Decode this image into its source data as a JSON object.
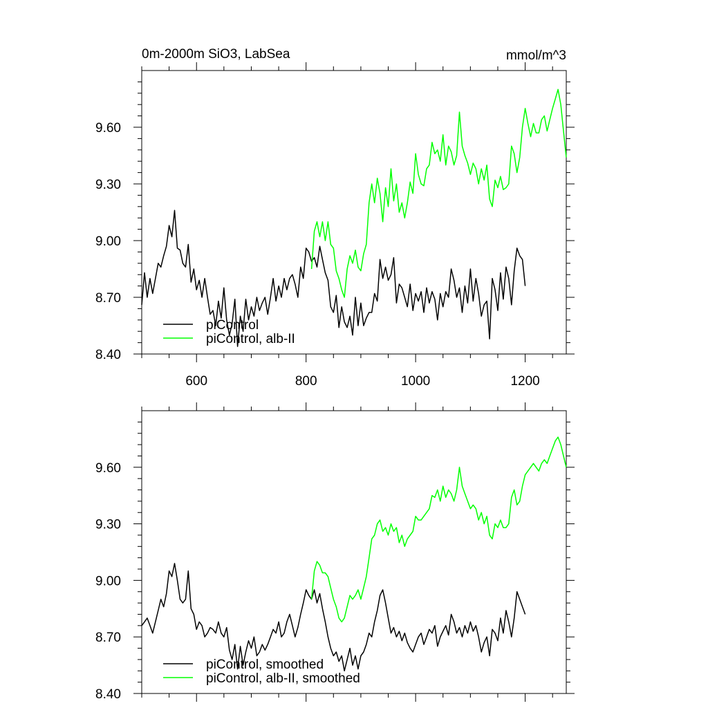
{
  "colors": {
    "series_black": "#000000",
    "series_green": "#00ff00",
    "axis": "#000000",
    "background": "#ffffff"
  },
  "chart_data": [
    {
      "type": "line",
      "title": "0m-2000m SiO3, LabSea",
      "units": "mmol/m^3",
      "xlim": [
        500,
        1275
      ],
      "ylim": [
        8.4,
        9.9
      ],
      "xticks": [
        600,
        800,
        1000,
        1200
      ],
      "xtick_labels": [
        "600",
        "800",
        "1000",
        "1200"
      ],
      "yticks": [
        8.4,
        8.7,
        9.0,
        9.3,
        9.6
      ],
      "ytick_labels": [
        "8.40",
        "8.70",
        "9.00",
        "9.30",
        "9.60"
      ],
      "grid": false,
      "legend": "bottom-left",
      "series": [
        {
          "name": "piControl",
          "color": "#000000",
          "x": [
            500,
            505,
            510,
            515,
            520,
            525,
            530,
            535,
            540,
            545,
            550,
            555,
            560,
            565,
            570,
            575,
            580,
            585,
            590,
            595,
            600,
            605,
            610,
            615,
            620,
            625,
            630,
            635,
            640,
            645,
            650,
            655,
            660,
            665,
            670,
            675,
            680,
            685,
            690,
            695,
            700,
            705,
            710,
            715,
            720,
            725,
            730,
            735,
            740,
            745,
            750,
            755,
            760,
            765,
            770,
            775,
            780,
            785,
            790,
            795,
            800,
            805,
            810,
            815,
            820,
            825,
            830,
            835,
            840,
            845,
            850,
            855,
            860,
            865,
            870,
            875,
            880,
            885,
            890,
            895,
            900,
            905,
            910,
            915,
            920,
            925,
            930,
            935,
            940,
            945,
            950,
            955,
            960,
            965,
            970,
            975,
            980,
            985,
            990,
            995,
            1000,
            1005,
            1010,
            1015,
            1020,
            1025,
            1030,
            1035,
            1040,
            1045,
            1050,
            1055,
            1060,
            1065,
            1070,
            1075,
            1080,
            1085,
            1090,
            1095,
            1100,
            1105,
            1110,
            1115,
            1120,
            1125,
            1130,
            1135,
            1140,
            1145,
            1150,
            1155,
            1160,
            1165,
            1170,
            1175,
            1180,
            1185,
            1190,
            1195,
            1200
          ],
          "y": [
            8.66,
            8.83,
            8.7,
            8.8,
            8.72,
            8.8,
            8.88,
            8.86,
            8.92,
            8.97,
            9.08,
            9.02,
            9.16,
            8.96,
            8.95,
            8.88,
            8.86,
            8.98,
            8.78,
            8.85,
            8.74,
            8.79,
            8.7,
            8.8,
            8.7,
            8.61,
            8.63,
            8.55,
            8.68,
            8.59,
            8.75,
            8.58,
            8.5,
            8.56,
            8.69,
            8.44,
            8.6,
            8.52,
            8.69,
            8.58,
            8.65,
            8.6,
            8.7,
            8.63,
            8.67,
            8.7,
            8.61,
            8.7,
            8.8,
            8.68,
            8.76,
            8.7,
            8.8,
            8.74,
            8.8,
            8.82,
            8.77,
            8.7,
            8.86,
            8.8,
            8.96,
            8.94,
            8.89,
            8.91,
            8.86,
            8.97,
            8.9,
            8.83,
            8.79,
            8.65,
            8.62,
            8.71,
            8.54,
            8.65,
            8.57,
            8.54,
            8.6,
            8.5,
            8.7,
            8.55,
            8.67,
            8.55,
            8.59,
            8.62,
            8.62,
            8.72,
            8.68,
            8.9,
            8.8,
            8.86,
            8.79,
            8.82,
            8.91,
            8.67,
            8.77,
            8.75,
            8.7,
            8.65,
            8.77,
            8.63,
            8.72,
            8.68,
            8.73,
            8.62,
            8.75,
            8.67,
            8.73,
            8.69,
            8.58,
            8.72,
            8.65,
            8.73,
            8.7,
            8.85,
            8.79,
            8.7,
            8.75,
            8.62,
            8.76,
            8.67,
            8.85,
            8.68,
            8.8,
            8.72,
            8.6,
            8.66,
            8.68,
            8.48,
            8.8,
            8.74,
            8.63,
            8.83,
            8.69,
            8.86,
            8.8,
            8.66,
            8.84,
            8.96,
            8.92,
            8.9,
            8.76
          ]
        },
        {
          "name": "piControl, alb-II",
          "color": "#00ff00",
          "x": [
            810,
            815,
            820,
            825,
            830,
            835,
            840,
            845,
            850,
            855,
            860,
            865,
            870,
            875,
            880,
            885,
            890,
            895,
            900,
            905,
            910,
            915,
            920,
            925,
            930,
            935,
            940,
            945,
            950,
            955,
            960,
            965,
            970,
            975,
            980,
            985,
            990,
            995,
            1000,
            1005,
            1010,
            1015,
            1020,
            1025,
            1030,
            1035,
            1040,
            1045,
            1050,
            1055,
            1060,
            1065,
            1070,
            1075,
            1080,
            1085,
            1090,
            1095,
            1100,
            1105,
            1110,
            1115,
            1120,
            1125,
            1130,
            1135,
            1140,
            1145,
            1150,
            1155,
            1160,
            1165,
            1170,
            1175,
            1180,
            1185,
            1190,
            1195,
            1200,
            1205,
            1210,
            1215,
            1220,
            1225,
            1230,
            1235,
            1240,
            1245,
            1250,
            1255,
            1260,
            1265,
            1270,
            1275
          ],
          "y": [
            8.85,
            9.05,
            9.1,
            9.02,
            9.1,
            9.0,
            9.1,
            8.98,
            8.96,
            8.84,
            8.8,
            8.74,
            8.7,
            8.85,
            8.92,
            8.88,
            8.95,
            8.86,
            8.84,
            8.93,
            8.98,
            9.2,
            9.3,
            9.2,
            9.33,
            9.25,
            9.1,
            9.28,
            9.18,
            9.38,
            9.21,
            9.3,
            9.15,
            9.2,
            9.12,
            9.2,
            9.31,
            9.25,
            9.46,
            9.35,
            9.3,
            9.29,
            9.38,
            9.4,
            9.52,
            9.46,
            9.48,
            9.42,
            9.56,
            9.4,
            9.5,
            9.47,
            9.4,
            9.45,
            9.68,
            9.5,
            9.45,
            9.41,
            9.35,
            9.41,
            9.38,
            9.3,
            9.38,
            9.32,
            9.4,
            9.22,
            9.18,
            9.32,
            9.28,
            9.34,
            9.27,
            9.28,
            9.3,
            9.5,
            9.46,
            9.36,
            9.44,
            9.6,
            9.7,
            9.62,
            9.55,
            9.62,
            9.57,
            9.57,
            9.64,
            9.66,
            9.58,
            9.64,
            9.7,
            9.75,
            9.8,
            9.72,
            9.58,
            9.44
          ]
        }
      ]
    },
    {
      "type": "line",
      "xlim": [
        500,
        1275
      ],
      "ylim": [
        8.4,
        9.9
      ],
      "xticks": [
        600,
        800,
        1000,
        1200
      ],
      "yticks": [
        8.4,
        8.7,
        9.0,
        9.3,
        9.6
      ],
      "ytick_labels": [
        "8.40",
        "8.70",
        "9.00",
        "9.30",
        "9.60"
      ],
      "grid": false,
      "legend": "bottom-left",
      "series": [
        {
          "name": "piControl, smoothed",
          "color": "#000000",
          "x": [
            500,
            505,
            510,
            515,
            520,
            525,
            530,
            535,
            540,
            545,
            550,
            555,
            560,
            565,
            570,
            575,
            580,
            585,
            590,
            595,
            600,
            605,
            610,
            615,
            620,
            625,
            630,
            635,
            640,
            645,
            650,
            655,
            660,
            665,
            670,
            675,
            680,
            685,
            690,
            695,
            700,
            705,
            710,
            715,
            720,
            725,
            730,
            735,
            740,
            745,
            750,
            755,
            760,
            765,
            770,
            775,
            780,
            785,
            790,
            795,
            800,
            805,
            810,
            815,
            820,
            825,
            830,
            835,
            840,
            845,
            850,
            855,
            860,
            865,
            870,
            875,
            880,
            885,
            890,
            895,
            900,
            905,
            910,
            915,
            920,
            925,
            930,
            935,
            940,
            945,
            950,
            955,
            960,
            965,
            970,
            975,
            980,
            985,
            990,
            995,
            1000,
            1005,
            1010,
            1015,
            1020,
            1025,
            1030,
            1035,
            1040,
            1045,
            1050,
            1055,
            1060,
            1065,
            1070,
            1075,
            1080,
            1085,
            1090,
            1095,
            1100,
            1105,
            1110,
            1115,
            1120,
            1125,
            1130,
            1135,
            1140,
            1145,
            1150,
            1155,
            1160,
            1165,
            1170,
            1175,
            1180,
            1185,
            1190,
            1195,
            1200
          ],
          "y": [
            8.76,
            8.78,
            8.8,
            8.76,
            8.72,
            8.78,
            8.84,
            8.9,
            8.86,
            8.93,
            9.05,
            9.02,
            9.09,
            9.0,
            8.9,
            8.88,
            8.9,
            9.05,
            8.85,
            8.82,
            8.74,
            8.78,
            8.76,
            8.7,
            8.72,
            8.75,
            8.74,
            8.72,
            8.78,
            8.72,
            8.7,
            8.75,
            8.63,
            8.58,
            8.66,
            8.53,
            8.65,
            8.55,
            8.62,
            8.68,
            8.64,
            8.7,
            8.6,
            8.62,
            8.66,
            8.63,
            8.66,
            8.7,
            8.74,
            8.72,
            8.78,
            8.7,
            8.72,
            8.78,
            8.82,
            8.76,
            8.7,
            8.75,
            8.82,
            8.88,
            8.95,
            8.92,
            8.9,
            8.95,
            8.88,
            8.93,
            8.85,
            8.78,
            8.7,
            8.64,
            8.6,
            8.62,
            8.57,
            8.6,
            8.52,
            8.58,
            8.64,
            8.55,
            8.6,
            8.53,
            8.6,
            8.62,
            8.66,
            8.72,
            8.7,
            8.78,
            8.84,
            8.92,
            8.95,
            8.88,
            8.8,
            8.72,
            8.75,
            8.7,
            8.73,
            8.68,
            8.72,
            8.67,
            8.64,
            8.62,
            8.66,
            8.7,
            8.72,
            8.66,
            8.7,
            8.74,
            8.72,
            8.76,
            8.65,
            8.7,
            8.73,
            8.76,
            8.71,
            8.82,
            8.78,
            8.72,
            8.75,
            8.7,
            8.76,
            8.72,
            8.78,
            8.73,
            8.76,
            8.7,
            8.62,
            8.67,
            8.7,
            8.6,
            8.74,
            8.72,
            8.68,
            8.8,
            8.72,
            8.84,
            8.78,
            8.7,
            8.8,
            8.94,
            8.9,
            8.86,
            8.82
          ]
        },
        {
          "name": "piControl, alb-II, smoothed",
          "color": "#00ff00",
          "x": [
            810,
            815,
            820,
            825,
            830,
            835,
            840,
            845,
            850,
            855,
            860,
            865,
            870,
            875,
            880,
            885,
            890,
            895,
            900,
            905,
            910,
            915,
            920,
            925,
            930,
            935,
            940,
            945,
            950,
            955,
            960,
            965,
            970,
            975,
            980,
            985,
            990,
            995,
            1000,
            1005,
            1010,
            1015,
            1020,
            1025,
            1030,
            1035,
            1040,
            1045,
            1050,
            1055,
            1060,
            1065,
            1070,
            1075,
            1080,
            1085,
            1090,
            1095,
            1100,
            1105,
            1110,
            1115,
            1120,
            1125,
            1130,
            1135,
            1140,
            1145,
            1150,
            1155,
            1160,
            1165,
            1170,
            1175,
            1180,
            1185,
            1190,
            1195,
            1200,
            1205,
            1210,
            1215,
            1220,
            1225,
            1230,
            1235,
            1240,
            1245,
            1250,
            1255,
            1260,
            1265,
            1270,
            1275
          ],
          "y": [
            8.9,
            9.05,
            9.1,
            9.08,
            9.04,
            9.04,
            9.02,
            8.96,
            8.9,
            8.86,
            8.8,
            8.78,
            8.8,
            8.86,
            8.92,
            8.9,
            8.92,
            8.95,
            8.9,
            8.96,
            9.02,
            9.12,
            9.22,
            9.24,
            9.3,
            9.32,
            9.26,
            9.28,
            9.24,
            9.3,
            9.26,
            9.28,
            9.2,
            9.24,
            9.18,
            9.22,
            9.24,
            9.26,
            9.34,
            9.32,
            9.32,
            9.34,
            9.36,
            9.38,
            9.45,
            9.44,
            9.48,
            9.42,
            9.5,
            9.44,
            9.48,
            9.46,
            9.42,
            9.48,
            9.6,
            9.5,
            9.46,
            9.42,
            9.38,
            9.4,
            9.38,
            9.32,
            9.36,
            9.3,
            9.34,
            9.24,
            9.22,
            9.3,
            9.28,
            9.32,
            9.28,
            9.28,
            9.3,
            9.44,
            9.48,
            9.4,
            9.42,
            9.5,
            9.56,
            9.58,
            9.6,
            9.62,
            9.6,
            9.58,
            9.62,
            9.64,
            9.62,
            9.66,
            9.7,
            9.74,
            9.76,
            9.72,
            9.66,
            9.6
          ]
        }
      ]
    }
  ]
}
